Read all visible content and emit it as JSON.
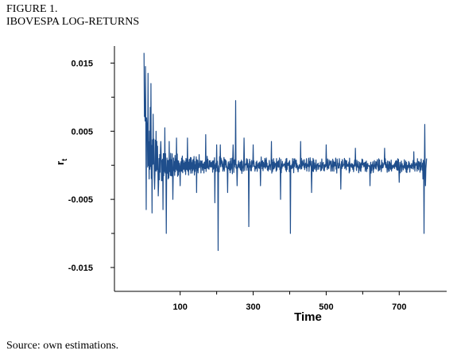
{
  "figure": {
    "number": "FIGURE 1.",
    "title": "IBOVESPA LOG-RETURNS",
    "source": "Source:  own estimations."
  },
  "chart_data": {
    "type": "line",
    "xlabel": "Time",
    "ylabel": "r",
    "ylabel_subscript": "t",
    "xlim": [
      -80,
      830
    ],
    "ylim": [
      -0.0185,
      0.0175
    ],
    "x_ticks": [
      100,
      300,
      500,
      700
    ],
    "x_minor_ticks": [
      200,
      400,
      600
    ],
    "y_ticks": [
      0.015,
      0.005,
      -0.005,
      -0.015
    ],
    "y_tick_labels": [
      "0.015",
      "0.005",
      "-0.005",
      "-0.015"
    ],
    "y_minor_ticks": [
      0.01,
      0,
      -0.01
    ],
    "series_color": "#1f4e8c",
    "series": [
      {
        "x_start": 1,
        "x_end": 775,
        "key_points": [
          [
            1,
            0.0165
          ],
          [
            3,
            0.0095
          ],
          [
            5,
            0.0145
          ],
          [
            7,
            -0.0065
          ],
          [
            9,
            0.006
          ],
          [
            12,
            0.0135
          ],
          [
            15,
            -0.002
          ],
          [
            18,
            0.0085
          ],
          [
            20,
            0.012
          ],
          [
            23,
            -0.007
          ],
          [
            26,
            0.0075
          ],
          [
            30,
            -0.0035
          ],
          [
            34,
            0.005
          ],
          [
            40,
            -0.0045
          ],
          [
            47,
            0.0035
          ],
          [
            53,
            -0.0065
          ],
          [
            58,
            0.0055
          ],
          [
            62,
            -0.01
          ],
          [
            70,
            0.0035
          ],
          [
            80,
            -0.005
          ],
          [
            90,
            0.004
          ],
          [
            100,
            -0.003
          ],
          [
            120,
            0.004
          ],
          [
            145,
            -0.004
          ],
          [
            170,
            0.0045
          ],
          [
            195,
            -0.0055
          ],
          [
            200,
            0.003
          ],
          [
            204,
            -0.0125
          ],
          [
            210,
            0.003
          ],
          [
            230,
            -0.004
          ],
          [
            245,
            0.003
          ],
          [
            252,
            0.0095
          ],
          [
            256,
            -0.003
          ],
          [
            275,
            0.004
          ],
          [
            288,
            -0.009
          ],
          [
            300,
            0.003
          ],
          [
            320,
            -0.003
          ],
          [
            350,
            0.0035
          ],
          [
            375,
            -0.005
          ],
          [
            402,
            -0.01
          ],
          [
            430,
            0.0035
          ],
          [
            460,
            -0.004
          ],
          [
            500,
            0.003
          ],
          [
            540,
            -0.0035
          ],
          [
            580,
            0.0025
          ],
          [
            620,
            -0.003
          ],
          [
            660,
            0.0025
          ],
          [
            700,
            -0.0025
          ],
          [
            740,
            0.002
          ],
          [
            765,
            -0.002
          ],
          [
            768,
            -0.01
          ],
          [
            770,
            0.006
          ],
          [
            772,
            -0.003
          ],
          [
            775,
            0.001
          ]
        ]
      }
    ]
  }
}
